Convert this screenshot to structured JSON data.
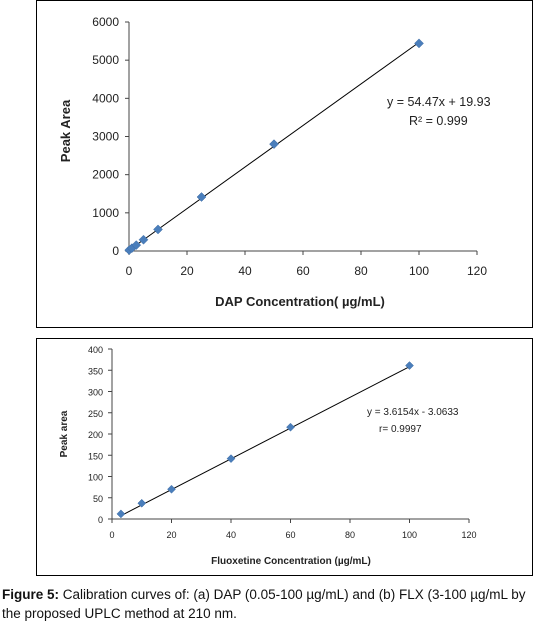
{
  "chart_data": [
    {
      "type": "scatter",
      "ylabel": "Peak Area",
      "xlabel": "DAP Concentration( µg/mL)",
      "xlim": [
        0,
        120
      ],
      "ylim": [
        0,
        6000
      ],
      "x_ticks": [
        "0",
        "20",
        "40",
        "60",
        "80",
        "100",
        "120"
      ],
      "y_ticks": [
        "0",
        "1000",
        "2000",
        "3000",
        "4000",
        "5000",
        "6000"
      ],
      "grid": false,
      "marker": "diamond",
      "marker_color": "#4a7ebb",
      "trendline": {
        "slope": 54.47,
        "intercept": 19.93
      },
      "annotations": [
        "y = 54.47x + 19.93",
        "R² = 0.999"
      ],
      "points": [
        {
          "x": 0.05,
          "y": 22
        },
        {
          "x": 1,
          "y": 75
        },
        {
          "x": 2.5,
          "y": 155
        },
        {
          "x": 5,
          "y": 295
        },
        {
          "x": 10,
          "y": 565
        },
        {
          "x": 25,
          "y": 1415
        },
        {
          "x": 50,
          "y": 2800
        },
        {
          "x": 100,
          "y": 5440
        }
      ]
    },
    {
      "type": "scatter",
      "ylabel": "Peak area",
      "xlabel": "Fluoxetine Concentration (µg/mL)",
      "xlim": [
        0,
        120
      ],
      "ylim": [
        0,
        400
      ],
      "x_ticks": [
        "0",
        "20",
        "40",
        "60",
        "80",
        "100",
        "120"
      ],
      "y_ticks": [
        "0",
        "50",
        "100",
        "150",
        "200",
        "250",
        "300",
        "350",
        "400"
      ],
      "grid": false,
      "marker": "diamond",
      "marker_color": "#4a7ebb",
      "trendline": {
        "slope": 3.6154,
        "intercept": -3.0633
      },
      "annotations": [
        "y = 3.6154x - 3.0633",
        "r= 0.9997"
      ],
      "points": [
        {
          "x": 3,
          "y": 12
        },
        {
          "x": 10,
          "y": 37
        },
        {
          "x": 20,
          "y": 70
        },
        {
          "x": 40,
          "y": 142
        },
        {
          "x": 60,
          "y": 216
        },
        {
          "x": 100,
          "y": 361
        }
      ]
    }
  ],
  "caption": {
    "label": "Figure 5:",
    "text": " Calibration curves of: (a) DAP (0.05-100 µg/mL) and (b) FLX (3-100 µg/mL by the proposed UPLC method at 210 nm."
  }
}
